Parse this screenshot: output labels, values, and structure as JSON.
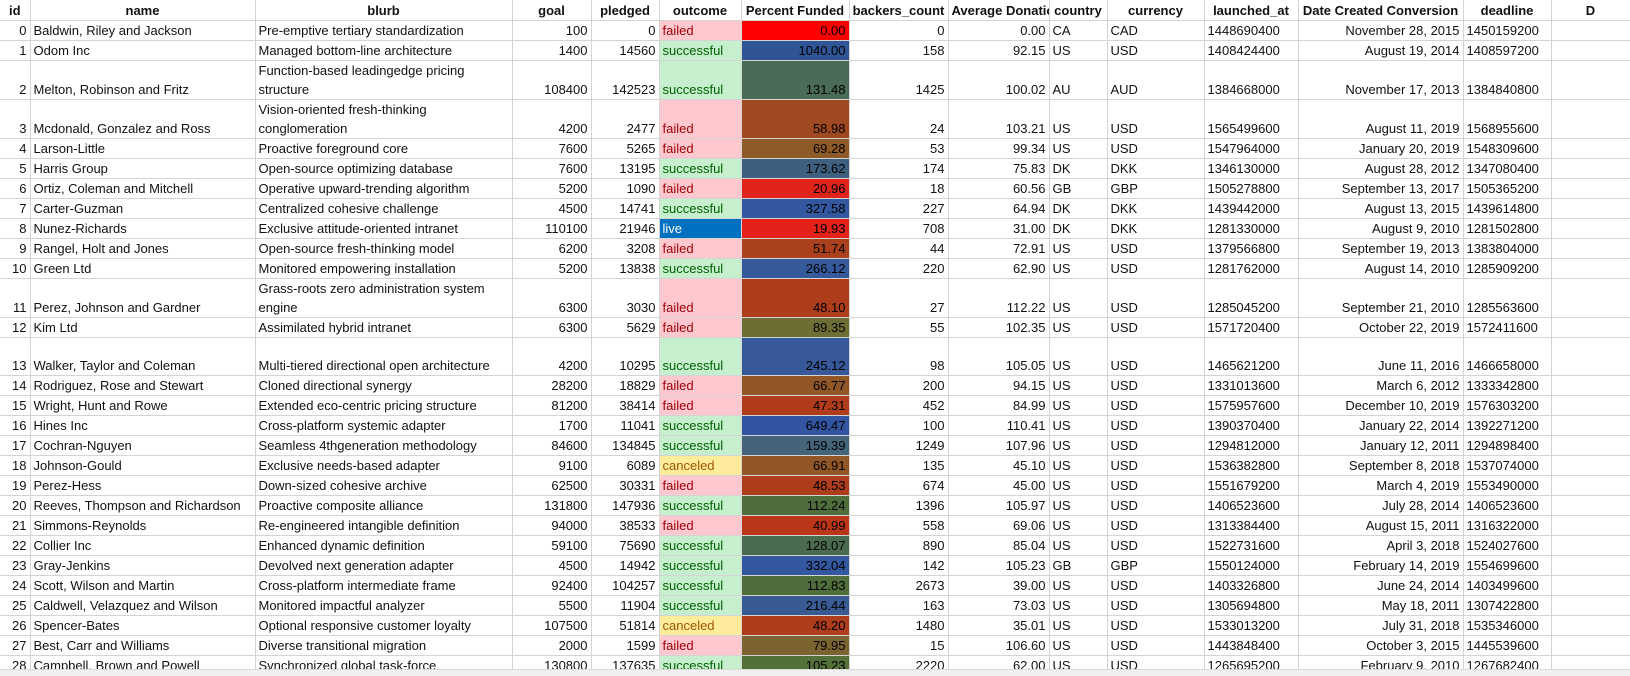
{
  "columns": [
    "id",
    "name",
    "blurb",
    "goal",
    "pledged",
    "outcome",
    "Percent Funded",
    "backers_count",
    "Average Donation",
    "country",
    "currency",
    "launched_at",
    "Date Created Conversion",
    "deadline",
    "D"
  ],
  "outcome_colors": {
    "successful": "#c6efce",
    "failed": "#ffc7ce",
    "canceled": "#ffeb9c",
    "live": "#0070c0"
  },
  "rows": [
    {
      "id": "0",
      "name": "Baldwin, Riley and Jackson",
      "blurb": "Pre-emptive tertiary standardization",
      "goal": "100",
      "pledged": "0",
      "outcome": "failed",
      "percent_funded": "0.00",
      "pf_color": "#ff0000",
      "backers_count": "0",
      "avg_donation": "0.00",
      "country": "CA",
      "currency": "CAD",
      "launched_at": "1448690400",
      "date_created": "November 28, 2015",
      "deadline": "1450159200",
      "tall": false
    },
    {
      "id": "1",
      "name": "Odom Inc",
      "blurb": "Managed bottom-line architecture",
      "goal": "1400",
      "pledged": "14560",
      "outcome": "successful",
      "percent_funded": "1040.00",
      "pf_color": "#2f5597",
      "backers_count": "158",
      "avg_donation": "92.15",
      "country": "US",
      "currency": "USD",
      "launched_at": "1408424400",
      "date_created": "August 19, 2014",
      "deadline": "1408597200",
      "tall": false
    },
    {
      "id": "2",
      "name": "Melton, Robinson and Fritz",
      "blurb": "Function-based leadingedge pricing structure",
      "goal": "108400",
      "pledged": "142523",
      "outcome": "successful",
      "percent_funded": "131.48",
      "pf_color": "#4a6b55",
      "backers_count": "1425",
      "avg_donation": "100.02",
      "country": "AU",
      "currency": "AUD",
      "launched_at": "1384668000",
      "date_created": "November 17, 2013",
      "deadline": "1384840800",
      "tall": true
    },
    {
      "id": "3",
      "name": "Mcdonald, Gonzalez and Ross",
      "blurb": "Vision-oriented fresh-thinking conglomeration",
      "goal": "4200",
      "pledged": "2477",
      "outcome": "failed",
      "percent_funded": "58.98",
      "pf_color": "#a0481f",
      "backers_count": "24",
      "avg_donation": "103.21",
      "country": "US",
      "currency": "USD",
      "launched_at": "1565499600",
      "date_created": "August 11, 2019",
      "deadline": "1568955600",
      "tall": true
    },
    {
      "id": "4",
      "name": "Larson-Little",
      "blurb": "Proactive foreground core",
      "goal": "7600",
      "pledged": "5265",
      "outcome": "failed",
      "percent_funded": "69.28",
      "pf_color": "#8e5a28",
      "backers_count": "53",
      "avg_donation": "99.34",
      "country": "US",
      "currency": "USD",
      "launched_at": "1547964000",
      "date_created": "January 20, 2019",
      "deadline": "1548309600",
      "tall": false
    },
    {
      "id": "5",
      "name": "Harris Group",
      "blurb": "Open-source optimizing database",
      "goal": "7600",
      "pledged": "13195",
      "outcome": "successful",
      "percent_funded": "173.62",
      "pf_color": "#3f5f7f",
      "backers_count": "174",
      "avg_donation": "75.83",
      "country": "DK",
      "currency": "DKK",
      "launched_at": "1346130000",
      "date_created": "August 28, 2012",
      "deadline": "1347080400",
      "tall": false
    },
    {
      "id": "6",
      "name": "Ortiz, Coleman and Mitchell",
      "blurb": "Operative upward-trending algorithm",
      "goal": "5200",
      "pledged": "1090",
      "outcome": "failed",
      "percent_funded": "20.96",
      "pf_color": "#e0241b",
      "backers_count": "18",
      "avg_donation": "60.56",
      "country": "GB",
      "currency": "GBP",
      "launched_at": "1505278800",
      "date_created": "September 13, 2017",
      "deadline": "1505365200",
      "tall": false
    },
    {
      "id": "7",
      "name": "Carter-Guzman",
      "blurb": "Centralized cohesive challenge",
      "goal": "4500",
      "pledged": "14741",
      "outcome": "successful",
      "percent_funded": "327.58",
      "pf_color": "#3458a0",
      "backers_count": "227",
      "avg_donation": "64.94",
      "country": "DK",
      "currency": "DKK",
      "launched_at": "1439442000",
      "date_created": "August 13, 2015",
      "deadline": "1439614800",
      "tall": false
    },
    {
      "id": "8",
      "name": "Nunez-Richards",
      "blurb": "Exclusive attitude-oriented intranet",
      "goal": "110100",
      "pledged": "21946",
      "outcome": "live",
      "percent_funded": "19.93",
      "pf_color": "#e3221a",
      "backers_count": "708",
      "avg_donation": "31.00",
      "country": "DK",
      "currency": "DKK",
      "launched_at": "1281330000",
      "date_created": "August 9, 2010",
      "deadline": "1281502800",
      "tall": false
    },
    {
      "id": "9",
      "name": "Rangel, Holt and Jones",
      "blurb": "Open-source fresh-thinking model",
      "goal": "6200",
      "pledged": "3208",
      "outcome": "failed",
      "percent_funded": "51.74",
      "pf_color": "#aa401c",
      "backers_count": "44",
      "avg_donation": "72.91",
      "country": "US",
      "currency": "USD",
      "launched_at": "1379566800",
      "date_created": "September 19, 2013",
      "deadline": "1383804000",
      "tall": false
    },
    {
      "id": "10",
      "name": "Green Ltd",
      "blurb": "Monitored empowering installation",
      "goal": "5200",
      "pledged": "13838",
      "outcome": "successful",
      "percent_funded": "266.12",
      "pf_color": "#355a9b",
      "backers_count": "220",
      "avg_donation": "62.90",
      "country": "US",
      "currency": "USD",
      "launched_at": "1281762000",
      "date_created": "August 14, 2010",
      "deadline": "1285909200",
      "tall": false
    },
    {
      "id": "11",
      "name": "Perez, Johnson and Gardner",
      "blurb": "Grass-roots zero administration system engine",
      "goal": "6300",
      "pledged": "3030",
      "outcome": "failed",
      "percent_funded": "48.10",
      "pf_color": "#ae3d1c",
      "backers_count": "27",
      "avg_donation": "112.22",
      "country": "US",
      "currency": "USD",
      "launched_at": "1285045200",
      "date_created": "September 21, 2010",
      "deadline": "1285563600",
      "tall": true
    },
    {
      "id": "12",
      "name": "Kim Ltd",
      "blurb": "Assimilated hybrid intranet",
      "goal": "6300",
      "pledged": "5629",
      "outcome": "failed",
      "percent_funded": "89.35",
      "pf_color": "#6d6e33",
      "backers_count": "55",
      "avg_donation": "102.35",
      "country": "US",
      "currency": "USD",
      "launched_at": "1571720400",
      "date_created": "October 22, 2019",
      "deadline": "1572411600",
      "tall": false
    },
    {
      "id": "13",
      "name": "Walker, Taylor and Coleman",
      "blurb": "Multi-tiered directional open architecture",
      "goal": "4200",
      "pledged": "10295",
      "outcome": "successful",
      "percent_funded": "245.12",
      "pf_color": "#37599a",
      "backers_count": "98",
      "avg_donation": "105.05",
      "country": "US",
      "currency": "USD",
      "launched_at": "1465621200",
      "date_created": "June 11, 2016",
      "deadline": "1466658000",
      "tall": true
    },
    {
      "id": "14",
      "name": "Rodriguez, Rose and Stewart",
      "blurb": "Cloned directional synergy",
      "goal": "28200",
      "pledged": "18829",
      "outcome": "failed",
      "percent_funded": "66.77",
      "pf_color": "#925726",
      "backers_count": "200",
      "avg_donation": "94.15",
      "country": "US",
      "currency": "USD",
      "launched_at": "1331013600",
      "date_created": "March 6, 2012",
      "deadline": "1333342800",
      "tall": false
    },
    {
      "id": "15",
      "name": "Wright, Hunt and Rowe",
      "blurb": "Extended eco-centric pricing structure",
      "goal": "81200",
      "pledged": "38414",
      "outcome": "failed",
      "percent_funded": "47.31",
      "pf_color": "#b03c1b",
      "backers_count": "452",
      "avg_donation": "84.99",
      "country": "US",
      "currency": "USD",
      "launched_at": "1575957600",
      "date_created": "December 10, 2019",
      "deadline": "1576303200",
      "tall": false
    },
    {
      "id": "16",
      "name": "Hines Inc",
      "blurb": "Cross-platform systemic adapter",
      "goal": "1700",
      "pledged": "11041",
      "outcome": "successful",
      "percent_funded": "649.47",
      "pf_color": "#3155a0",
      "backers_count": "100",
      "avg_donation": "110.41",
      "country": "US",
      "currency": "USD",
      "launched_at": "1390370400",
      "date_created": "January 22, 2014",
      "deadline": "1392271200",
      "tall": false
    },
    {
      "id": "17",
      "name": "Cochran-Nguyen",
      "blurb": "Seamless 4thgeneration methodology",
      "goal": "84600",
      "pledged": "134845",
      "outcome": "successful",
      "percent_funded": "159.39",
      "pf_color": "#44647a",
      "backers_count": "1249",
      "avg_donation": "107.96",
      "country": "US",
      "currency": "USD",
      "launched_at": "1294812000",
      "date_created": "January 12, 2011",
      "deadline": "1294898400",
      "tall": false
    },
    {
      "id": "18",
      "name": "Johnson-Gould",
      "blurb": "Exclusive needs-based adapter",
      "goal": "9100",
      "pledged": "6089",
      "outcome": "canceled",
      "percent_funded": "66.91",
      "pf_color": "#925726",
      "backers_count": "135",
      "avg_donation": "45.10",
      "country": "US",
      "currency": "USD",
      "launched_at": "1536382800",
      "date_created": "September 8, 2018",
      "deadline": "1537074000",
      "tall": false
    },
    {
      "id": "19",
      "name": "Perez-Hess",
      "blurb": "Down-sized cohesive archive",
      "goal": "62500",
      "pledged": "30331",
      "outcome": "failed",
      "percent_funded": "48.53",
      "pf_color": "#ae3d1c",
      "backers_count": "674",
      "avg_donation": "45.00",
      "country": "US",
      "currency": "USD",
      "launched_at": "1551679200",
      "date_created": "March 4, 2019",
      "deadline": "1553490000",
      "tall": false
    },
    {
      "id": "20",
      "name": "Reeves, Thompson and Richardson",
      "blurb": "Proactive composite alliance",
      "goal": "131800",
      "pledged": "147936",
      "outcome": "successful",
      "percent_funded": "112.24",
      "pf_color": "#4f6e3c",
      "backers_count": "1396",
      "avg_donation": "105.97",
      "country": "US",
      "currency": "USD",
      "launched_at": "1406523600",
      "date_created": "July 28, 2014",
      "deadline": "1406523600",
      "tall": false
    },
    {
      "id": "21",
      "name": "Simmons-Reynolds",
      "blurb": "Re-engineered intangible definition",
      "goal": "94000",
      "pledged": "38533",
      "outcome": "failed",
      "percent_funded": "40.99",
      "pf_color": "#bb3519",
      "backers_count": "558",
      "avg_donation": "69.06",
      "country": "US",
      "currency": "USD",
      "launched_at": "1313384400",
      "date_created": "August 15, 2011",
      "deadline": "1316322000",
      "tall": false
    },
    {
      "id": "22",
      "name": "Collier Inc",
      "blurb": "Enhanced dynamic definition",
      "goal": "59100",
      "pledged": "75690",
      "outcome": "successful",
      "percent_funded": "128.07",
      "pf_color": "#4b6b4e",
      "backers_count": "890",
      "avg_donation": "85.04",
      "country": "US",
      "currency": "USD",
      "launched_at": "1522731600",
      "date_created": "April 3, 2018",
      "deadline": "1524027600",
      "tall": false
    },
    {
      "id": "23",
      "name": "Gray-Jenkins",
      "blurb": "Devolved next generation adapter",
      "goal": "4500",
      "pledged": "14942",
      "outcome": "successful",
      "percent_funded": "332.04",
      "pf_color": "#3458a0",
      "backers_count": "142",
      "avg_donation": "105.23",
      "country": "GB",
      "currency": "GBP",
      "launched_at": "1550124000",
      "date_created": "February 14, 2019",
      "deadline": "1554699600",
      "tall": false
    },
    {
      "id": "24",
      "name": "Scott, Wilson and Martin",
      "blurb": "Cross-platform intermediate frame",
      "goal": "92400",
      "pledged": "104257",
      "outcome": "successful",
      "percent_funded": "112.83",
      "pf_color": "#4f6e3c",
      "backers_count": "2673",
      "avg_donation": "39.00",
      "country": "US",
      "currency": "USD",
      "launched_at": "1403326800",
      "date_created": "June 24, 2014",
      "deadline": "1403499600",
      "tall": false
    },
    {
      "id": "25",
      "name": "Caldwell, Velazquez and Wilson",
      "blurb": "Monitored impactful analyzer",
      "goal": "5500",
      "pledged": "11904",
      "outcome": "successful",
      "percent_funded": "216.44",
      "pf_color": "#395a92",
      "backers_count": "163",
      "avg_donation": "73.03",
      "country": "US",
      "currency": "USD",
      "launched_at": "1305694800",
      "date_created": "May 18, 2011",
      "deadline": "1307422800",
      "tall": false
    },
    {
      "id": "26",
      "name": "Spencer-Bates",
      "blurb": "Optional responsive customer loyalty",
      "goal": "107500",
      "pledged": "51814",
      "outcome": "canceled",
      "percent_funded": "48.20",
      "pf_color": "#ae3d1c",
      "backers_count": "1480",
      "avg_donation": "35.01",
      "country": "US",
      "currency": "USD",
      "launched_at": "1533013200",
      "date_created": "July 31, 2018",
      "deadline": "1535346000",
      "tall": false
    },
    {
      "id": "27",
      "name": "Best, Carr and Williams",
      "blurb": "Diverse transitional migration",
      "goal": "2000",
      "pledged": "1599",
      "outcome": "failed",
      "percent_funded": "79.95",
      "pf_color": "#7c6430",
      "backers_count": "15",
      "avg_donation": "106.60",
      "country": "US",
      "currency": "USD",
      "launched_at": "1443848400",
      "date_created": "October 3, 2015",
      "deadline": "1445539600",
      "tall": false
    },
    {
      "id": "28",
      "name": "Campbell, Brown and Powell",
      "blurb": "Synchronized global task-force",
      "goal": "130800",
      "pledged": "137635",
      "outcome": "successful",
      "percent_funded": "105.23",
      "pf_color": "#547039",
      "backers_count": "2220",
      "avg_donation": "62.00",
      "country": "US",
      "currency": "USD",
      "launched_at": "1265695200",
      "date_created": "February 9, 2010",
      "deadline": "1267682400",
      "tall": false
    }
  ]
}
